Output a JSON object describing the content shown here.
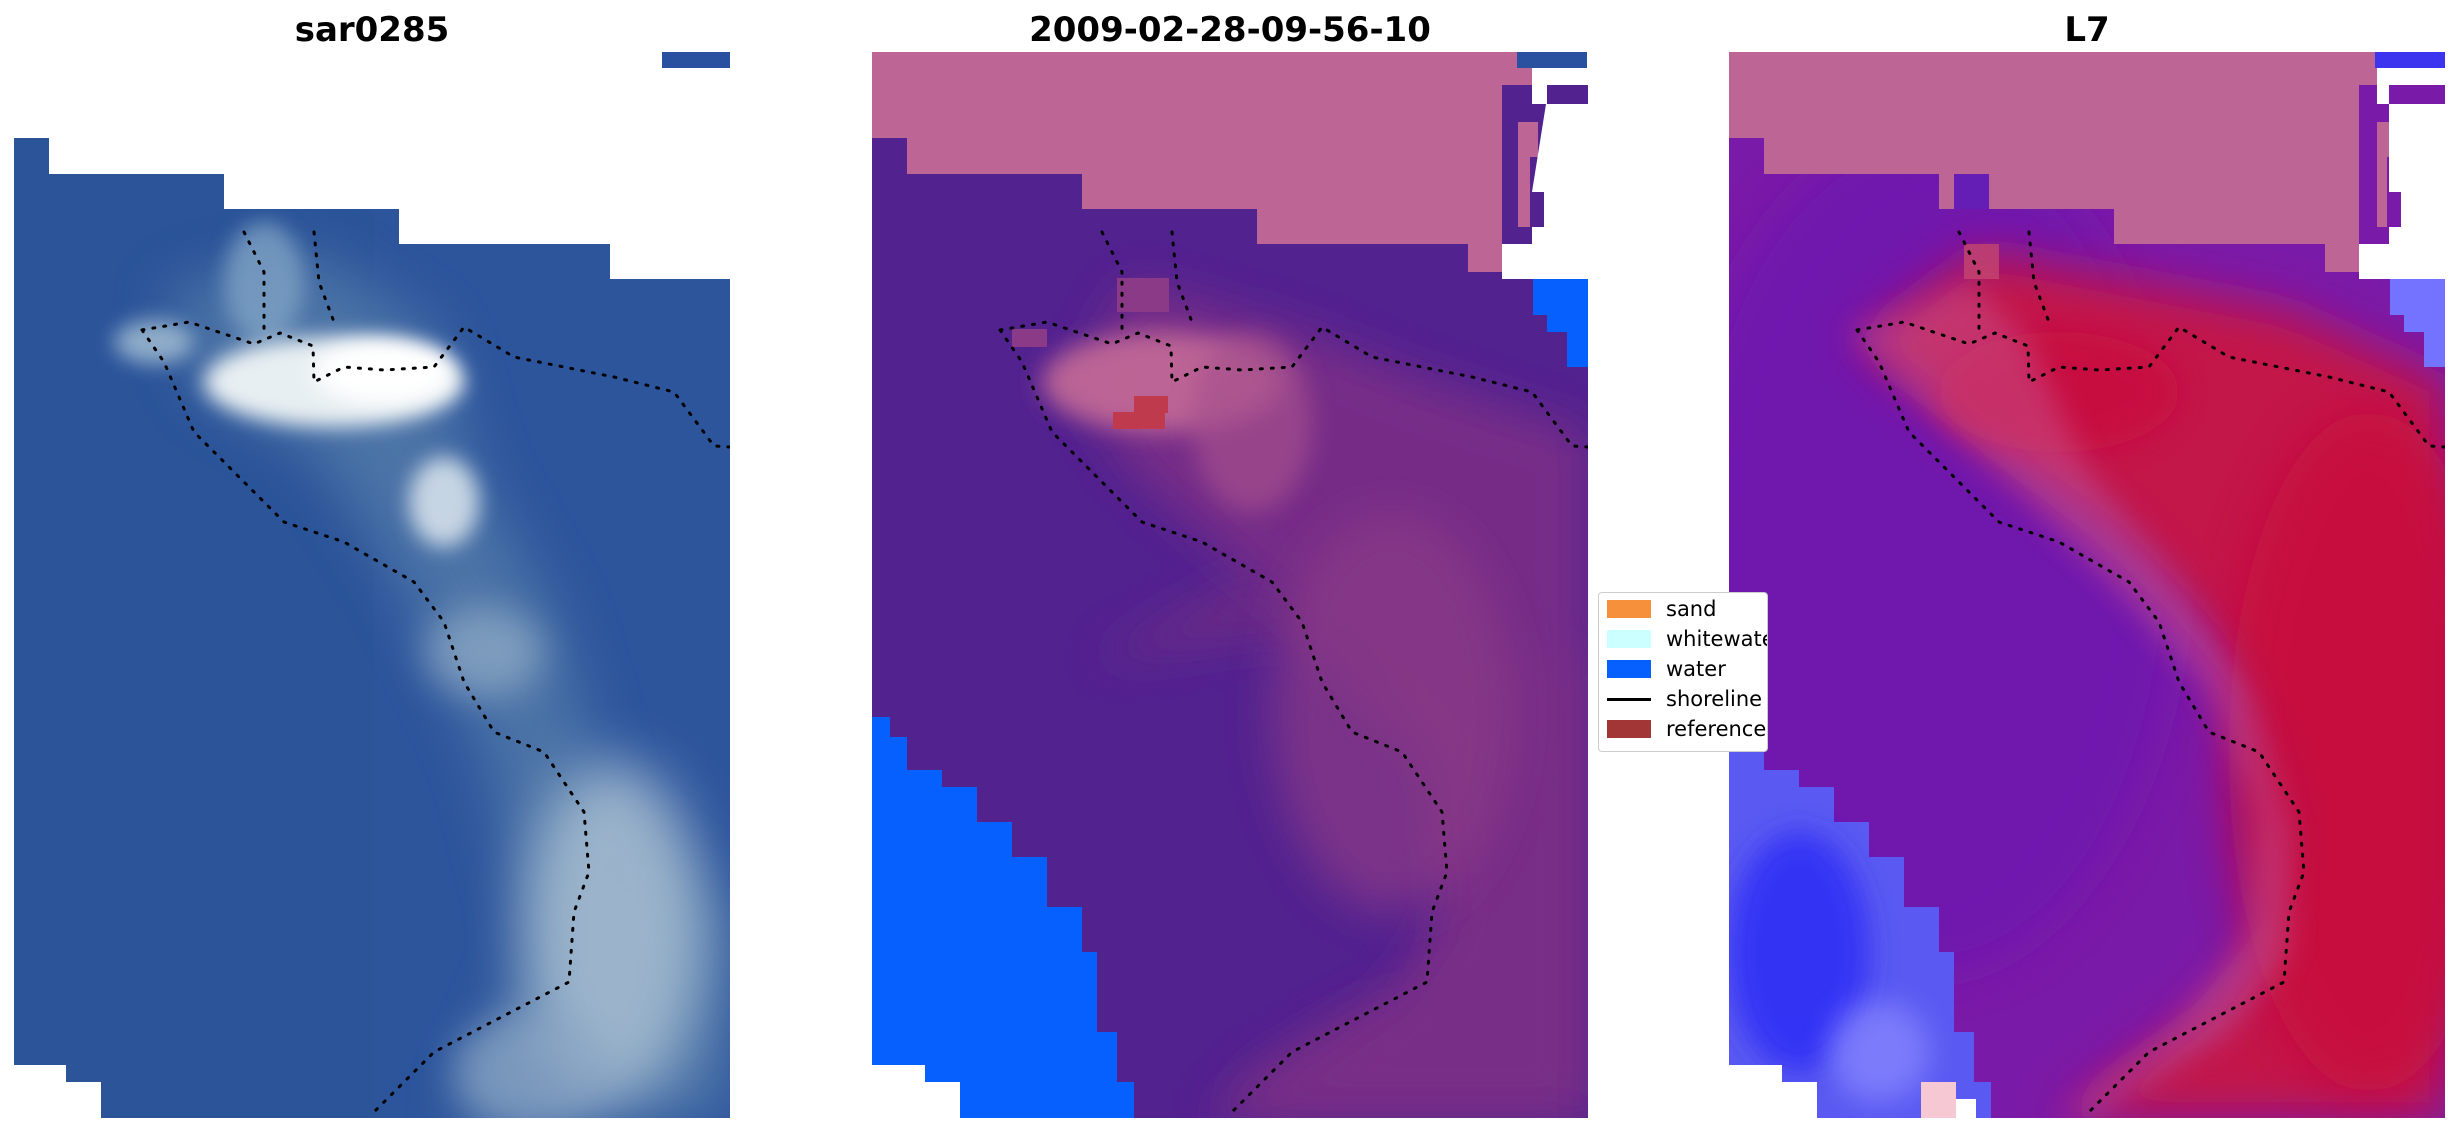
{
  "panels": [
    {
      "title": "sar0285"
    },
    {
      "title": "2009-02-28-09-56-10"
    },
    {
      "title": "L7"
    }
  ],
  "legend": {
    "items": [
      {
        "label": "sand",
        "color": "#f7903b",
        "kind": "patch"
      },
      {
        "label": "whitewater",
        "color": "#ccffff",
        "kind": "patch"
      },
      {
        "label": "water",
        "color": "#0660fd",
        "kind": "patch"
      },
      {
        "label": "shoreline",
        "color": "#000000",
        "kind": "line"
      },
      {
        "label": "reference",
        "color": "#a23636",
        "kind": "patch"
      }
    ]
  },
  "colors": {
    "sea_rgb": "#2d559c",
    "water_class": "#0660fd",
    "sand_class_overlay": "#6b2a86",
    "land_class_overlay": "#bf6796",
    "classification_background": "#52228f",
    "index_high": "#c80b40",
    "index_low": "#2f24f5",
    "index_mid": "#7a1aa8",
    "scale_bar_rgb": "#2a51a0",
    "scale_bar_class": "#2a51a0",
    "scale_bar_index": "#3c34ef"
  }
}
